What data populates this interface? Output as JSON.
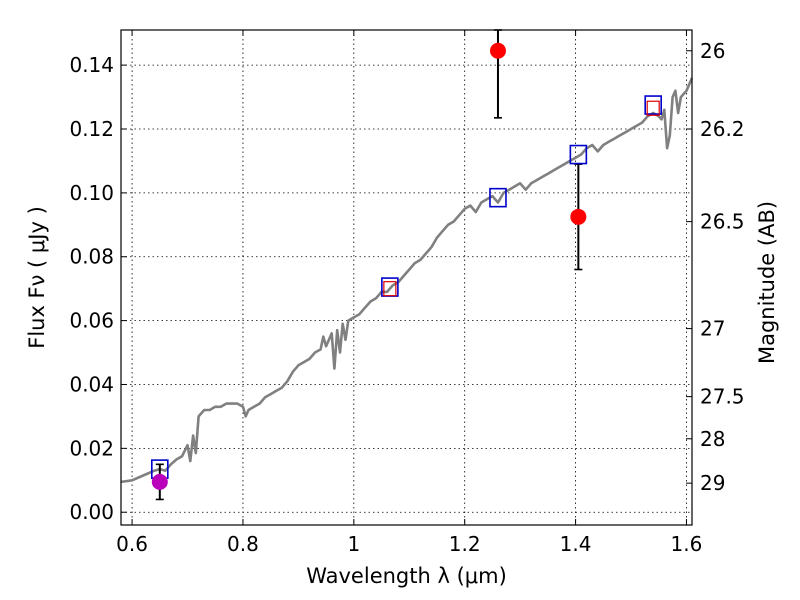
{
  "chart_data": {
    "type": "scatter",
    "title": "",
    "xlabel": "Wavelength  λ (μm)",
    "ylabel": "Flux  Fν  ( μJy )",
    "ylabel_right": "Magnitude (AB)",
    "xlim": [
      0.58,
      1.61
    ],
    "ylim": [
      -0.004,
      0.151
    ],
    "grid": true,
    "x_ticks": [
      {
        "value": 0.6,
        "label": "0.6"
      },
      {
        "value": 0.8,
        "label": "0.8"
      },
      {
        "value": 1.0,
        "label": "1"
      },
      {
        "value": 1.2,
        "label": "1.2"
      },
      {
        "value": 1.4,
        "label": "1.4"
      },
      {
        "value": 1.6,
        "label": "1.6"
      }
    ],
    "y_ticks": [
      {
        "value": 0.0,
        "label": "0.00"
      },
      {
        "value": 0.02,
        "label": "0.02"
      },
      {
        "value": 0.04,
        "label": "0.04"
      },
      {
        "value": 0.06,
        "label": "0.06"
      },
      {
        "value": 0.08,
        "label": "0.08"
      },
      {
        "value": 0.1,
        "label": "0.10"
      },
      {
        "value": 0.12,
        "label": "0.12"
      },
      {
        "value": 0.14,
        "label": "0.14"
      }
    ],
    "right_ticks": [
      {
        "flux": 0.1445,
        "label": "26"
      },
      {
        "flux": 0.12,
        "label": "26.2"
      },
      {
        "flux": 0.091,
        "label": "26.5"
      },
      {
        "flux": 0.0575,
        "label": "27"
      },
      {
        "flux": 0.0362,
        "label": "27.5"
      },
      {
        "flux": 0.023,
        "label": "28"
      },
      {
        "flux": 0.0091,
        "label": "29"
      }
    ],
    "series": [
      {
        "kind": "spectrum",
        "color": "#808080",
        "points": [
          [
            0.58,
            0.0095
          ],
          [
            0.6,
            0.01
          ],
          [
            0.62,
            0.0115
          ],
          [
            0.64,
            0.013
          ],
          [
            0.65,
            0.0135
          ],
          [
            0.66,
            0.013
          ],
          [
            0.67,
            0.015
          ],
          [
            0.68,
            0.0165
          ],
          [
            0.69,
            0.0175
          ],
          [
            0.7,
            0.021
          ],
          [
            0.705,
            0.016
          ],
          [
            0.71,
            0.024
          ],
          [
            0.715,
            0.0185
          ],
          [
            0.72,
            0.03
          ],
          [
            0.73,
            0.032
          ],
          [
            0.74,
            0.032
          ],
          [
            0.75,
            0.033
          ],
          [
            0.76,
            0.033
          ],
          [
            0.77,
            0.034
          ],
          [
            0.78,
            0.034
          ],
          [
            0.79,
            0.034
          ],
          [
            0.8,
            0.033
          ],
          [
            0.805,
            0.03
          ],
          [
            0.81,
            0.032
          ],
          [
            0.82,
            0.033
          ],
          [
            0.83,
            0.034
          ],
          [
            0.84,
            0.036
          ],
          [
            0.85,
            0.037
          ],
          [
            0.86,
            0.038
          ],
          [
            0.87,
            0.039
          ],
          [
            0.88,
            0.041
          ],
          [
            0.89,
            0.044
          ],
          [
            0.9,
            0.046
          ],
          [
            0.91,
            0.047
          ],
          [
            0.92,
            0.048
          ],
          [
            0.93,
            0.05
          ],
          [
            0.94,
            0.051
          ],
          [
            0.945,
            0.055
          ],
          [
            0.95,
            0.052
          ],
          [
            0.96,
            0.056
          ],
          [
            0.965,
            0.045
          ],
          [
            0.97,
            0.057
          ],
          [
            0.975,
            0.05
          ],
          [
            0.98,
            0.059
          ],
          [
            0.985,
            0.054
          ],
          [
            0.99,
            0.06
          ],
          [
            1.0,
            0.061
          ],
          [
            1.01,
            0.062
          ],
          [
            1.02,
            0.064
          ],
          [
            1.03,
            0.066
          ],
          [
            1.04,
            0.067
          ],
          [
            1.05,
            0.069
          ],
          [
            1.06,
            0.069
          ],
          [
            1.07,
            0.071
          ],
          [
            1.08,
            0.072
          ],
          [
            1.09,
            0.074
          ],
          [
            1.1,
            0.076
          ],
          [
            1.11,
            0.078
          ],
          [
            1.12,
            0.079
          ],
          [
            1.13,
            0.081
          ],
          [
            1.14,
            0.083
          ],
          [
            1.15,
            0.086
          ],
          [
            1.16,
            0.088
          ],
          [
            1.17,
            0.09
          ],
          [
            1.18,
            0.091
          ],
          [
            1.19,
            0.093
          ],
          [
            1.2,
            0.095
          ],
          [
            1.21,
            0.096
          ],
          [
            1.22,
            0.094
          ],
          [
            1.23,
            0.097
          ],
          [
            1.24,
            0.098
          ],
          [
            1.25,
            0.099
          ],
          [
            1.26,
            0.097
          ],
          [
            1.27,
            0.1
          ],
          [
            1.28,
            0.101
          ],
          [
            1.29,
            0.102
          ],
          [
            1.3,
            0.103
          ],
          [
            1.31,
            0.101
          ],
          [
            1.32,
            0.103
          ],
          [
            1.33,
            0.104
          ],
          [
            1.34,
            0.105
          ],
          [
            1.35,
            0.106
          ],
          [
            1.36,
            0.107
          ],
          [
            1.37,
            0.108
          ],
          [
            1.38,
            0.109
          ],
          [
            1.39,
            0.11
          ],
          [
            1.4,
            0.111
          ],
          [
            1.41,
            0.112
          ],
          [
            1.42,
            0.114
          ],
          [
            1.43,
            0.115
          ],
          [
            1.44,
            0.113
          ],
          [
            1.45,
            0.115
          ],
          [
            1.46,
            0.116
          ],
          [
            1.47,
            0.117
          ],
          [
            1.48,
            0.118
          ],
          [
            1.49,
            0.119
          ],
          [
            1.5,
            0.12
          ],
          [
            1.51,
            0.121
          ],
          [
            1.52,
            0.122
          ],
          [
            1.53,
            0.124
          ],
          [
            1.54,
            0.125
          ],
          [
            1.55,
            0.124
          ],
          [
            1.555,
            0.123
          ],
          [
            1.56,
            0.126
          ],
          [
            1.565,
            0.114
          ],
          [
            1.57,
            0.118
          ],
          [
            1.575,
            0.13
          ],
          [
            1.58,
            0.132
          ],
          [
            1.585,
            0.125
          ],
          [
            1.59,
            0.13
          ],
          [
            1.6,
            0.132
          ],
          [
            1.61,
            0.136
          ]
        ]
      },
      {
        "kind": "model-photometry",
        "edge_color": "#0000cc",
        "points": [
          [
            0.65,
            0.0135
          ],
          [
            1.065,
            0.0705
          ],
          [
            1.26,
            0.0985
          ],
          [
            1.405,
            0.112
          ],
          [
            1.54,
            0.1275
          ]
        ]
      },
      {
        "kind": "model-photometry-inner",
        "edge_color": "#dd0000",
        "points": [
          [
            1.065,
            0.07
          ],
          [
            1.54,
            0.1265
          ]
        ]
      },
      {
        "kind": "observed",
        "color": "#ff0000",
        "points": [
          {
            "x": 1.26,
            "y": 0.1445,
            "err_low": 0.1235,
            "err_high": 0.151
          },
          {
            "x": 1.405,
            "y": 0.0925,
            "err_low": 0.076,
            "err_high": 0.109
          }
        ]
      },
      {
        "kind": "observed-optical",
        "color": "#bb00bb",
        "points": [
          {
            "x": 0.65,
            "y": 0.0095,
            "err_low": 0.004,
            "err_high": 0.015
          }
        ]
      }
    ]
  }
}
